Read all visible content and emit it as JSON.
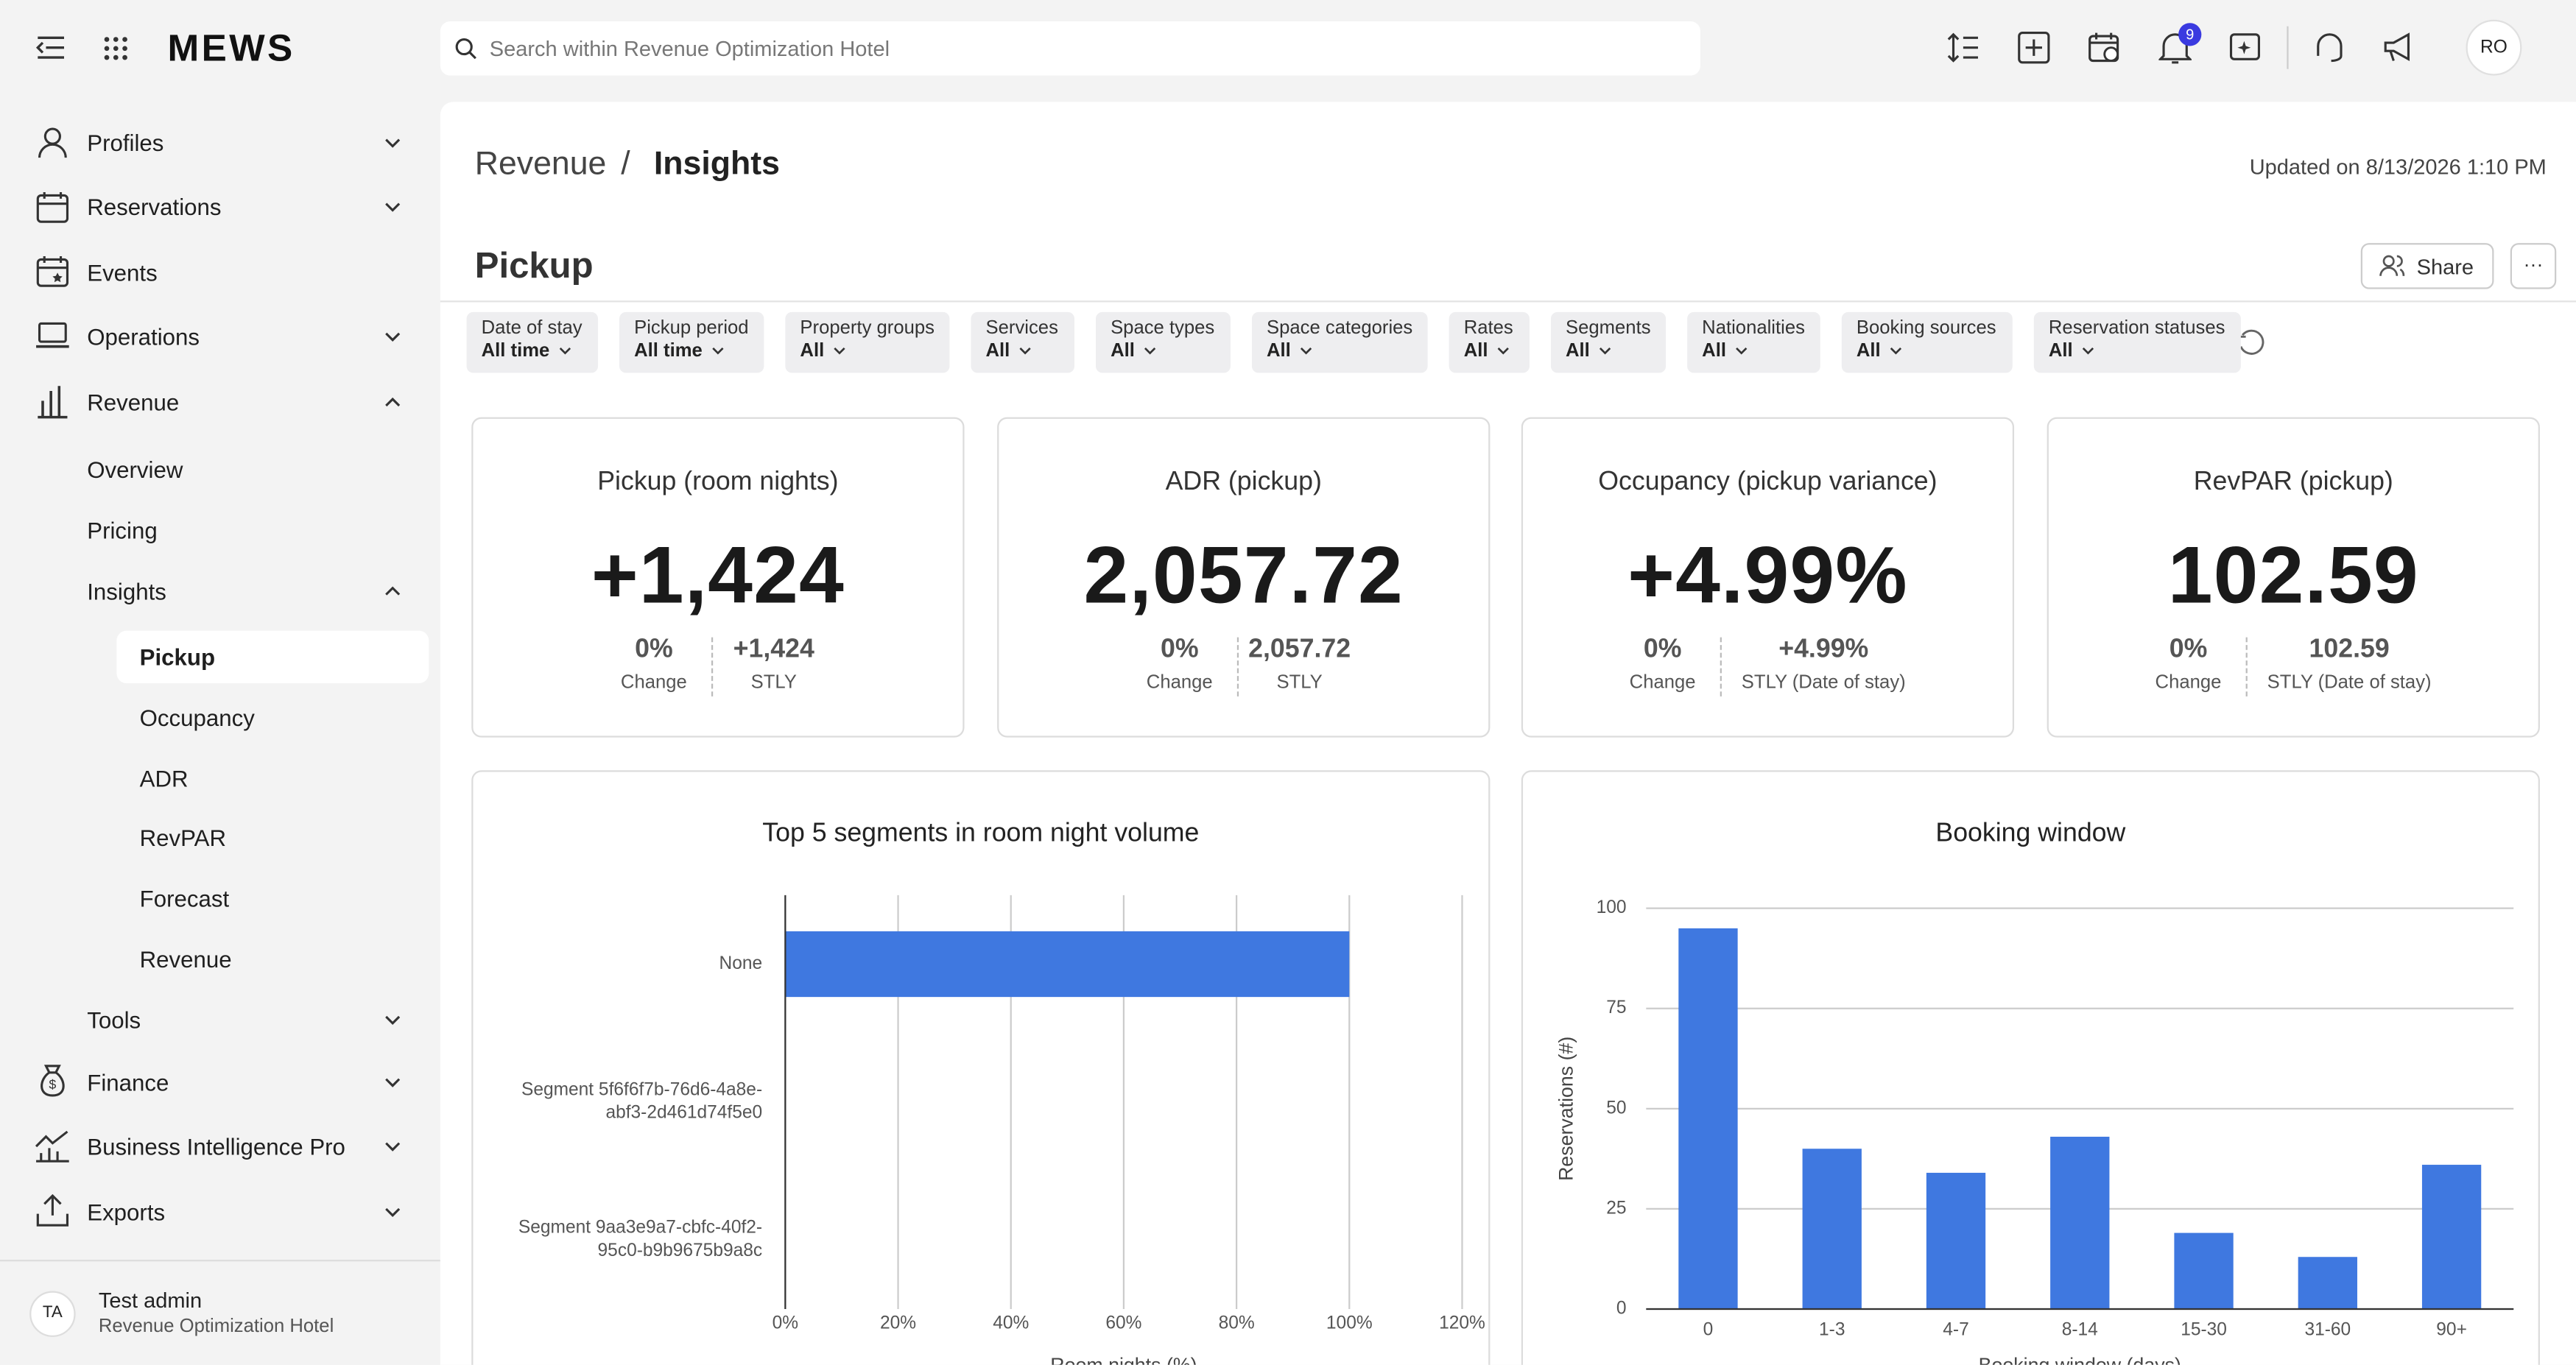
{
  "header": {
    "logo": "MEWS",
    "search_placeholder": "Search within Revenue Optimization Hotel",
    "notification_count": "9",
    "avatar": "RO"
  },
  "sidebar": {
    "top": [
      "Profiles",
      "Reservations",
      "Events",
      "Operations",
      "Revenue"
    ],
    "revenue": [
      "Overview",
      "Pricing",
      "Insights"
    ],
    "insights": [
      "Pickup",
      "Occupancy",
      "ADR",
      "RevPAR",
      "Forecast",
      "Revenue"
    ],
    "tools": "Tools",
    "bottom": [
      "Finance",
      "Business Intelligence Pro",
      "Exports"
    ],
    "user": {
      "initials": "TA",
      "name": "Test admin",
      "hotel": "Revenue Optimization Hotel"
    }
  },
  "breadcrumb": [
    "Revenue",
    "/",
    "Insights"
  ],
  "updated": "Updated on 8/13/2026 1:10 PM",
  "page_title": "Pickup",
  "share": "Share",
  "more": "···",
  "filters": [
    {
      "label": "Date of stay",
      "value": "All time"
    },
    {
      "label": "Pickup period",
      "value": "All time"
    },
    {
      "label": "Property groups",
      "value": "All"
    },
    {
      "label": "Services",
      "value": "All"
    },
    {
      "label": "Space types",
      "value": "All"
    },
    {
      "label": "Space categories",
      "value": "All"
    },
    {
      "label": "Rates",
      "value": "All"
    },
    {
      "label": "Segments",
      "value": "All"
    },
    {
      "label": "Nationalities",
      "value": "All"
    },
    {
      "label": "Booking sources",
      "value": "All"
    },
    {
      "label": "Reservation statuses",
      "value": "All"
    }
  ],
  "kpis": [
    {
      "title": "Pickup (room nights)",
      "value": "+1,424",
      "change": "0%",
      "change_label": "Change",
      "stly": "+1,424",
      "stly_label": "STLY"
    },
    {
      "title": "ADR (pickup)",
      "value": "2,057.72",
      "change": "0%",
      "change_label": "Change",
      "stly": "2,057.72",
      "stly_label": "STLY"
    },
    {
      "title": "Occupancy (pickup variance)",
      "value": "+4.99%",
      "change": "0%",
      "change_label": "Change",
      "stly": "+4.99%",
      "stly_label": "STLY (Date of stay)"
    },
    {
      "title": "RevPAR (pickup)",
      "value": "102.59",
      "change": "0%",
      "change_label": "Change",
      "stly": "102.59",
      "stly_label": "STLY (Date of stay)"
    }
  ],
  "chart_data": [
    {
      "type": "bar",
      "orientation": "horizontal",
      "title": "Top 5 segments in room night volume",
      "x_label": "Room nights (%)",
      "categories": [
        "None",
        "Segment 5f6f6f7b-76d6-4a8e-abf3-2d461d74f5e0",
        "Segment 9aa3e9a7-cbfc-40f2-95c0-b9b9675b9a8c"
      ],
      "values": [
        100,
        0,
        0
      ],
      "color": "#3f78e0",
      "xlim": [
        0,
        120
      ],
      "xticks": [
        {
          "value": 0,
          "label": "0%"
        },
        {
          "value": 20,
          "label": "20%"
        },
        {
          "value": 40,
          "label": "40%"
        },
        {
          "value": 60,
          "label": "60%"
        },
        {
          "value": 80,
          "label": "80%"
        },
        {
          "value": 100,
          "label": "100%"
        },
        {
          "value": 120,
          "label": "120%"
        }
      ],
      "grid": true
    },
    {
      "type": "bar",
      "orientation": "vertical",
      "title": "Booking window",
      "x_label": "Booking window (days)",
      "y_label": "Reservations (#)",
      "categories": [
        "0",
        "1-3",
        "4-7",
        "8-14",
        "15-30",
        "31-60",
        "90+"
      ],
      "values": [
        95,
        40,
        34,
        43,
        19,
        13,
        36
      ],
      "color": "#3f78e0",
      "ylim": [
        0,
        100
      ],
      "yticks": [
        0,
        25,
        50,
        75,
        100
      ],
      "grid": true
    }
  ]
}
